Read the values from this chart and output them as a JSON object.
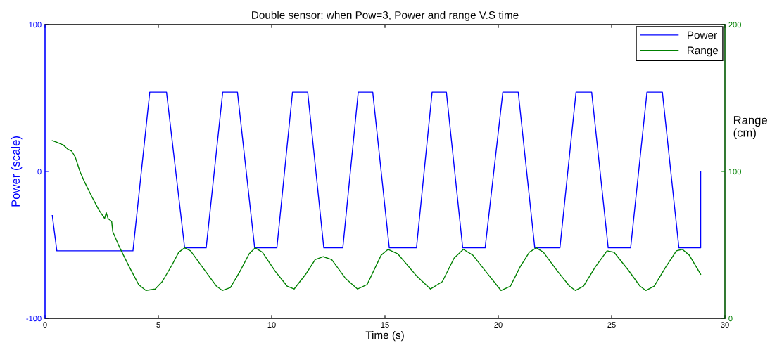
{
  "chart_data": {
    "type": "line",
    "title": "Double sensor: when Pow=3, Power and range V.S time",
    "xlabel": "Time (s)",
    "ylabel": "Power (scale)",
    "y2label": "Range\n(cm)",
    "xlim": [
      0,
      30
    ],
    "xticks": [
      0,
      5,
      10,
      15,
      20,
      25,
      30
    ],
    "ylim": [
      -100,
      100
    ],
    "yticks": [
      -100,
      0,
      100
    ],
    "y2lim": [
      0,
      200
    ],
    "y2ticks": [
      0,
      100,
      200
    ],
    "grid": false,
    "legend": "top right",
    "marker": "none",
    "line_style": "solid",
    "series": [
      {
        "name": "Power",
        "color": "#0000ff",
        "x": [
          0.32,
          0.52,
          3.88,
          4.62,
          5.36,
          6.16,
          7.11,
          7.84,
          8.49,
          9.25,
          10.23,
          10.92,
          11.59,
          12.3,
          13.14,
          13.82,
          14.46,
          15.19,
          16.39,
          17.08,
          17.71,
          18.43,
          19.42,
          20.2,
          20.88,
          21.61,
          22.72,
          23.43,
          24.12,
          24.85,
          25.84,
          26.56,
          27.24,
          27.97,
          28.93,
          28.93
        ],
        "values": [
          -30,
          -54,
          -54,
          54,
          54,
          -52,
          -52,
          54,
          54,
          -52,
          -52,
          54,
          54,
          -52,
          -52,
          54,
          54,
          -52,
          -52,
          54,
          54,
          -52,
          -52,
          54,
          54,
          -52,
          -52,
          54,
          54,
          -52,
          -52,
          54,
          54,
          -52,
          -52,
          0
        ]
      },
      {
        "name": "Range",
        "color": "#008000",
        "axis": "y2",
        "x": [
          0.32,
          0.5,
          0.81,
          1.02,
          1.17,
          1.33,
          1.54,
          1.74,
          2.06,
          2.37,
          2.63,
          2.7,
          2.78,
          2.94,
          2.99,
          3.3,
          3.72,
          4.13,
          4.45,
          4.86,
          5.17,
          5.59,
          5.9,
          6.16,
          6.42,
          6.94,
          7.56,
          7.82,
          8.18,
          8.6,
          9.01,
          9.27,
          9.59,
          10.16,
          10.68,
          10.99,
          11.5,
          11.92,
          12.28,
          12.65,
          13.27,
          13.79,
          14.21,
          14.83,
          15.14,
          15.56,
          16.39,
          17.01,
          17.53,
          18.05,
          18.46,
          18.88,
          19.6,
          20.12,
          20.54,
          20.96,
          21.37,
          21.68,
          21.99,
          22.62,
          23.14,
          23.4,
          23.76,
          24.28,
          24.8,
          25.11,
          25.73,
          26.25,
          26.51,
          26.88,
          27.39,
          27.86,
          28.12,
          28.43,
          28.93
        ],
        "values": [
          121,
          120,
          118,
          115,
          114,
          110,
          100,
          93,
          83,
          74,
          68,
          72,
          68,
          66,
          59,
          48,
          35,
          23,
          19,
          20,
          25,
          36,
          45,
          48,
          46,
          35,
          22,
          19,
          21,
          32,
          44,
          48,
          45,
          32,
          22,
          20,
          30,
          40,
          42,
          40,
          27,
          20,
          23,
          43,
          47,
          44,
          29,
          20,
          25,
          41,
          47,
          43,
          29,
          19,
          22,
          35,
          45,
          48,
          45,
          32,
          22,
          19,
          22,
          35,
          46,
          45,
          33,
          22,
          19,
          22,
          35,
          46,
          47,
          43,
          30
        ]
      }
    ]
  }
}
